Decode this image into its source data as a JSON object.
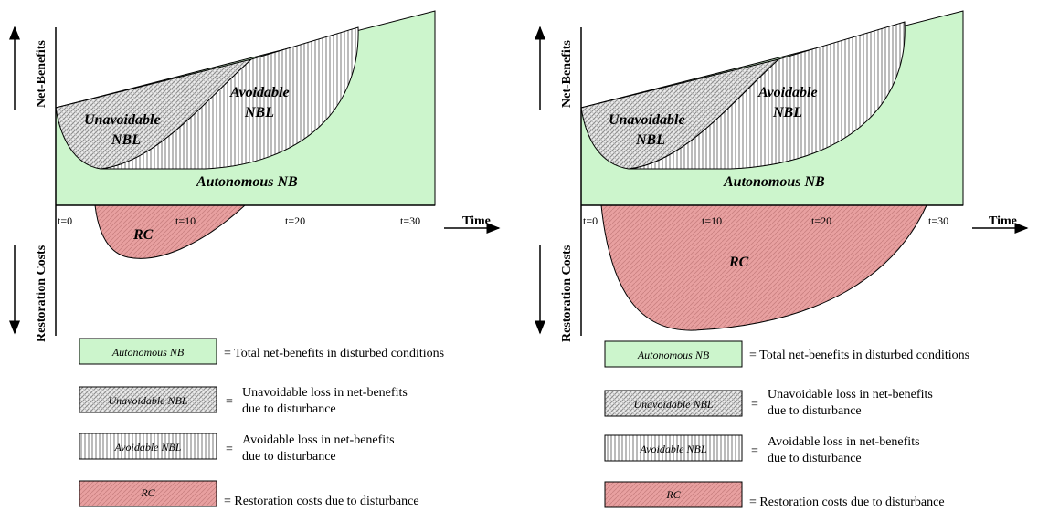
{
  "panels": [
    {
      "id": "left",
      "axis": {
        "y_up_label": "Net-Benefits",
        "y_down_label": "Restoration Costs",
        "x_label": "Time"
      },
      "ticks": [
        "t=0",
        "t=10",
        "t=20",
        "t=30"
      ],
      "regions": {
        "autonomous": "Autonomous NB",
        "unavoidable_1": "Unavoidable",
        "unavoidable_2": "NBL",
        "avoidable_1": "Avoidable",
        "avoidable_2": "NBL",
        "rc": "RC"
      }
    },
    {
      "id": "right",
      "axis": {
        "y_up_label": "Net-Benefits",
        "y_down_label": "Restoration Costs",
        "x_label": "Time"
      },
      "ticks": [
        "t=0",
        "t=10",
        "t=20",
        "t=30"
      ],
      "regions": {
        "autonomous": "Autonomous NB",
        "unavoidable_1": "Unavoidable",
        "unavoidable_2": "NBL",
        "avoidable_1": "Avoidable",
        "avoidable_2": "NBL",
        "rc": "RC"
      }
    }
  ],
  "legend": [
    {
      "box": "Autonomous NB",
      "desc_1": "= Total net-benefits in disturbed conditions",
      "desc_2": ""
    },
    {
      "box": "Unavoidable NBL",
      "desc_1": "Unavoidable loss in net-benefits",
      "desc_2": "due to disturbance"
    },
    {
      "box": "Avoidable NBL",
      "desc_1": "Avoidable loss in net-benefits",
      "desc_2": "due to disturbance"
    },
    {
      "box": "RC",
      "desc_1": "= Restoration costs due to disturbance",
      "desc_2": ""
    }
  ],
  "legend_equals": "=",
  "colors": {
    "autonomous": "#ccf5cc",
    "rc": "#e89a9a",
    "hatch_line": "#777777"
  }
}
